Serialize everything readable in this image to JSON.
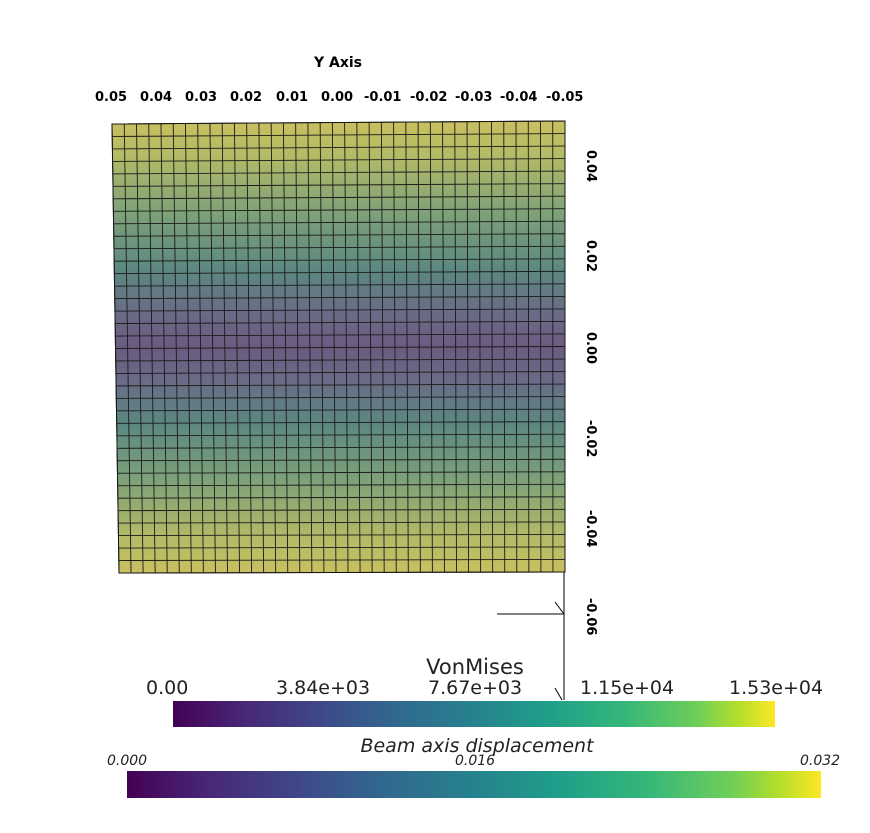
{
  "plot": {
    "y_axis_title": "Y Axis",
    "y_ticks": [
      "0.05",
      "0.04",
      "0.03",
      "0.02",
      "0.01",
      "0.00",
      "-0.01",
      "-0.02",
      "-0.03",
      "-0.04",
      "-0.05"
    ],
    "z_ticks": [
      "0.04",
      "0.02",
      "0.00",
      "-0.02",
      "-0.04",
      "-0.06"
    ],
    "mesh": {
      "columns": 37,
      "rows": 36,
      "line_color": "#000000"
    }
  },
  "colorbar_vonmises": {
    "title": "VonMises",
    "ticks": [
      "0.00",
      "3.84e+03",
      "7.67e+03",
      "1.15e+04",
      "1.53e+04"
    ],
    "colormap": "viridis"
  },
  "colorbar_displacement": {
    "title": "Beam axis displacement",
    "ticks": [
      "0.000",
      "0.016",
      "0.032"
    ],
    "colormap": "viridis"
  }
}
